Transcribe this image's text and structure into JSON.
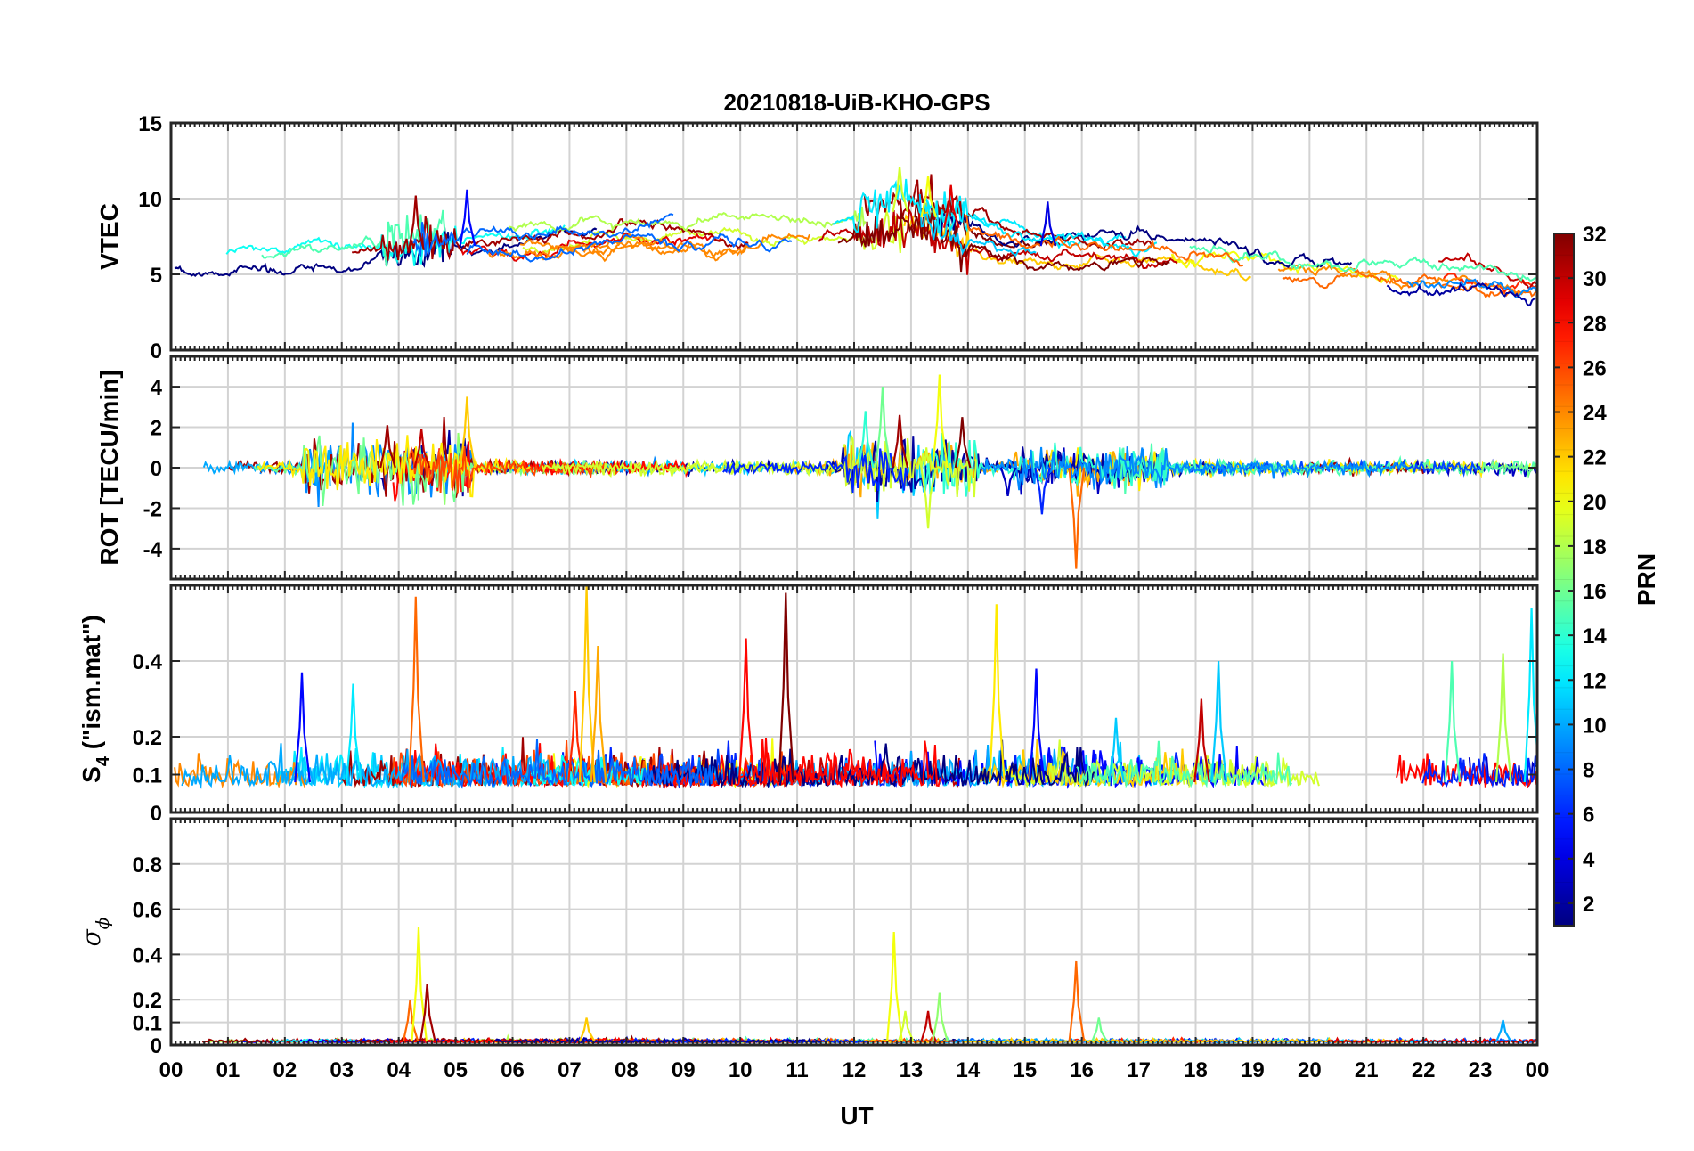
{
  "chart_data": {
    "type": "line",
    "title": "20210818-UiB-KHO-GPS",
    "xlabel": "UT",
    "xlim": [
      0,
      24
    ],
    "x_ticks": [
      0,
      1,
      2,
      3,
      4,
      5,
      6,
      7,
      8,
      9,
      10,
      11,
      12,
      13,
      14,
      15,
      16,
      17,
      18,
      19,
      20,
      21,
      22,
      23,
      24
    ],
    "x_tick_labels": [
      "00",
      "01",
      "02",
      "03",
      "04",
      "05",
      "06",
      "07",
      "08",
      "09",
      "10",
      "11",
      "12",
      "13",
      "14",
      "15",
      "16",
      "17",
      "18",
      "19",
      "20",
      "21",
      "22",
      "23",
      "00"
    ],
    "grid": true,
    "colorbar": {
      "label": "PRN",
      "colormap": "jet",
      "range": [
        1,
        32
      ],
      "tick_values": [
        2,
        4,
        6,
        8,
        10,
        12,
        14,
        16,
        18,
        20,
        22,
        24,
        26,
        28,
        30,
        32
      ],
      "tick_labels": [
        "2",
        "4",
        "6",
        "8",
        "10",
        "12",
        "14",
        "16",
        "18",
        "20",
        "22",
        "24",
        "26",
        "28",
        "30",
        "32"
      ],
      "placement": "right"
    },
    "panels": [
      {
        "name": "vtec",
        "ylabel": "VTEC",
        "ylim": [
          0,
          15
        ],
        "yticks": [
          0,
          5,
          10,
          15
        ],
        "ytick_labels": [
          "0",
          "5",
          "10",
          "15"
        ],
        "typical_range": [
          4,
          12
        ],
        "series_summary": "VTEC around 5-9 TECU, rising to about 8-12 TECU between 12 and 14 UT, decreasing toward 5-7 after 21 UT"
      },
      {
        "name": "rot",
        "ylabel": "ROT [TECU/min]",
        "ylim": [
          -5.5,
          5.5
        ],
        "yticks": [
          -4,
          -2,
          0,
          2,
          4
        ],
        "ytick_labels": [
          "-4",
          "-2",
          "0",
          "2",
          "4"
        ],
        "typical_range": [
          -5,
          4.6
        ],
        "series_summary": "ROT near 0 with bursts of about ±2 around 02-05 UT and 12-14 UT (max about 4.6, min about -5 near 15.9 UT)"
      },
      {
        "name": "s4",
        "ylabel_parts": [
          "S",
          "4",
          " (\"ism.mat\")"
        ],
        "ylim": [
          0,
          0.6
        ],
        "yticks": [
          0,
          0.1,
          0.2,
          0.4
        ],
        "ytick_labels": [
          "0",
          "0.1",
          "0.2",
          "0.4"
        ],
        "typical_range": [
          0.03,
          0.6
        ],
        "series_summary": "S4 background 0.05-0.15 with spikes up to about 0.6 near 04 UT, 07.3 UT and 10.8 UT"
      },
      {
        "name": "sigma_phi",
        "ylabel_parts": [
          "σ",
          "ϕ"
        ],
        "ylim": [
          0,
          1
        ],
        "yticks": [
          0,
          0.1,
          0.2,
          0.4,
          0.6,
          0.8
        ],
        "ytick_labels": [
          "0",
          "0.1",
          "0.2",
          "0.4",
          "0.6",
          "0.8"
        ],
        "typical_range": [
          0,
          0.52
        ],
        "series_summary": "σφ near 0.01-0.03 with spikes to about 0.52 near 04.3 UT, 0.5 near 12.7 UT and 0.37 near 15.9 UT"
      }
    ],
    "spikes": {
      "vtec": [
        [
          4.3,
          31,
          10.2
        ],
        [
          5.2,
          5,
          10.6
        ],
        [
          12.8,
          19,
          12.1
        ],
        [
          13.3,
          20,
          11.5
        ],
        [
          13.7,
          29,
          10.9
        ],
        [
          15.4,
          4,
          9.8
        ]
      ],
      "rot": [
        [
          3.8,
          31,
          2.1
        ],
        [
          4.4,
          30,
          1.9
        ],
        [
          5.2,
          22,
          3.5
        ],
        [
          12.5,
          16,
          4.0
        ],
        [
          12.8,
          31,
          2.6
        ],
        [
          13.5,
          20,
          4.6
        ],
        [
          13.9,
          32,
          2.5
        ],
        [
          15.9,
          25,
          -5.0
        ],
        [
          13.3,
          19,
          -3.0
        ],
        [
          15.3,
          6,
          -2.3
        ],
        [
          12.2,
          14,
          2.8
        ],
        [
          14.7,
          3,
          -1.4
        ]
      ],
      "s4": [
        [
          2.3,
          5,
          0.37
        ],
        [
          3.2,
          12,
          0.34
        ],
        [
          4.3,
          25,
          0.57
        ],
        [
          7.1,
          27,
          0.32
        ],
        [
          7.3,
          22,
          0.6
        ],
        [
          7.5,
          23,
          0.44
        ],
        [
          10.1,
          28,
          0.46
        ],
        [
          10.8,
          32,
          0.58
        ],
        [
          14.5,
          21,
          0.55
        ],
        [
          15.2,
          5,
          0.38
        ],
        [
          16.6,
          11,
          0.25
        ],
        [
          18.1,
          30,
          0.3
        ],
        [
          18.4,
          11,
          0.4
        ],
        [
          22.5,
          15,
          0.4
        ],
        [
          23.4,
          18,
          0.42
        ],
        [
          23.9,
          12,
          0.54
        ]
      ],
      "sigma_phi": [
        [
          4.2,
          25,
          0.2
        ],
        [
          4.35,
          20,
          0.52
        ],
        [
          4.5,
          31,
          0.27
        ],
        [
          7.3,
          22,
          0.12
        ],
        [
          12.7,
          20,
          0.5
        ],
        [
          12.9,
          19,
          0.15
        ],
        [
          13.3,
          30,
          0.15
        ],
        [
          13.5,
          17,
          0.23
        ],
        [
          15.9,
          25,
          0.37
        ],
        [
          16.3,
          16,
          0.12
        ],
        [
          23.4,
          10,
          0.11
        ]
      ]
    }
  }
}
